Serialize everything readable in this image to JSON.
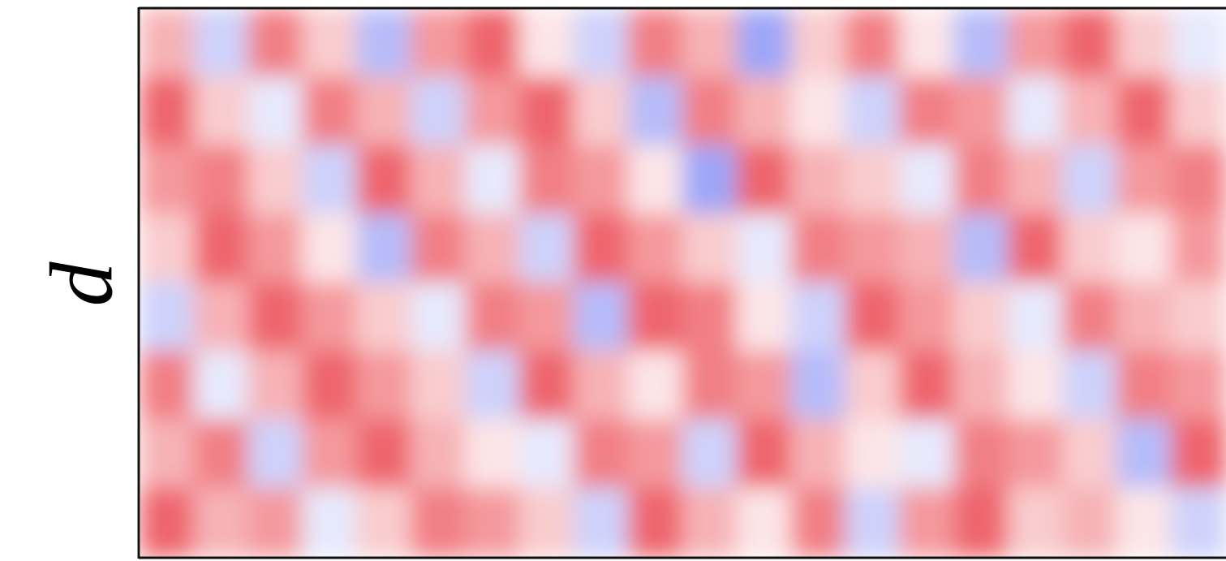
{
  "chart_data": {
    "type": "heatmap",
    "ylabel": "d",
    "colors": {
      "negative": "#3b4cf0",
      "zero": "#ffffff",
      "positive": "#e8323c"
    },
    "values": [
      [
        0.3,
        -0.2,
        0.5,
        0.2,
        -0.3,
        0.4,
        0.6,
        0.1,
        -0.2,
        0.5,
        0.3,
        -0.4,
        0.2,
        0.5,
        0.1,
        -0.3,
        0.4,
        0.6,
        0.2,
        -0.1
      ],
      [
        0.6,
        0.2,
        -0.1,
        0.5,
        0.3,
        -0.2,
        0.4,
        0.6,
        0.2,
        -0.3,
        0.5,
        0.3,
        0.1,
        -0.2,
        0.5,
        0.4,
        -0.1,
        0.3,
        0.6,
        0.2
      ],
      [
        0.4,
        0.5,
        0.2,
        -0.2,
        0.6,
        0.3,
        -0.1,
        0.5,
        0.4,
        0.1,
        -0.4,
        0.6,
        0.3,
        0.2,
        -0.1,
        0.5,
        0.3,
        -0.2,
        0.4,
        0.5
      ],
      [
        0.2,
        0.6,
        0.4,
        0.1,
        -0.3,
        0.5,
        0.3,
        -0.2,
        0.6,
        0.4,
        0.2,
        -0.1,
        0.5,
        0.4,
        0.3,
        -0.3,
        0.6,
        0.2,
        0.1,
        0.4
      ],
      [
        -0.2,
        0.3,
        0.6,
        0.4,
        0.2,
        -0.1,
        0.5,
        0.4,
        -0.3,
        0.6,
        0.5,
        0.1,
        -0.2,
        0.6,
        0.4,
        0.2,
        -0.1,
        0.5,
        0.3,
        0.2
      ],
      [
        0.5,
        -0.1,
        0.3,
        0.6,
        0.4,
        0.2,
        -0.2,
        0.6,
        0.3,
        0.1,
        0.5,
        0.4,
        -0.3,
        0.2,
        0.6,
        0.3,
        0.1,
        -0.2,
        0.5,
        0.4
      ],
      [
        0.3,
        0.5,
        -0.2,
        0.4,
        0.6,
        0.3,
        0.1,
        -0.1,
        0.5,
        0.4,
        -0.2,
        0.6,
        0.3,
        0.1,
        -0.1,
        0.5,
        0.4,
        0.2,
        -0.3,
        0.6
      ],
      [
        0.6,
        0.3,
        0.4,
        -0.1,
        0.2,
        0.5,
        0.4,
        0.2,
        -0.2,
        0.6,
        0.3,
        0.1,
        0.5,
        -0.2,
        0.4,
        0.6,
        0.2,
        0.3,
        0.1,
        -0.2
      ]
    ]
  }
}
